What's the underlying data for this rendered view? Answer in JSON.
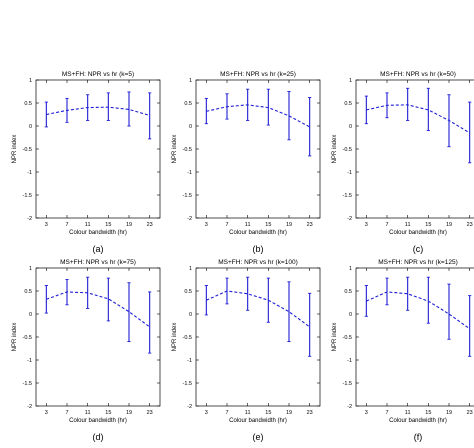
{
  "chart_data": [
    {
      "type": "line",
      "panel_label": "(a)",
      "title": "MS+FH: NPR vs hr (k=5)",
      "xlabel": "Colour bandwidth (hr)",
      "ylabel": "NPR index",
      "x": [
        3,
        7,
        11,
        15,
        19,
        23
      ],
      "xlim": [
        1,
        25
      ],
      "ylim": [
        -2,
        1
      ],
      "yticks": [
        -2,
        -1.5,
        -1,
        -0.5,
        0,
        0.5,
        1
      ],
      "series": [
        {
          "values": [
            0.25,
            0.34,
            0.4,
            0.41,
            0.36,
            0.23
          ],
          "lower": [
            -0.02,
            0.08,
            0.12,
            0.12,
            0.0,
            -0.28
          ],
          "upper": [
            0.52,
            0.6,
            0.68,
            0.72,
            0.74,
            0.72
          ]
        }
      ],
      "color": "#1f1fd6"
    },
    {
      "type": "line",
      "panel_label": "(b)",
      "title": "MS+FH: NPR vs hr (k=25)",
      "xlabel": "Colour bandwidth (hr)",
      "ylabel": "NPR index",
      "x": [
        3,
        7,
        11,
        15,
        19,
        23
      ],
      "xlim": [
        1,
        25
      ],
      "ylim": [
        -2,
        1
      ],
      "yticks": [
        -2,
        -1.5,
        -1,
        -0.5,
        0,
        0.5,
        1
      ],
      "series": [
        {
          "values": [
            0.32,
            0.42,
            0.46,
            0.4,
            0.22,
            -0.02
          ],
          "lower": [
            0.05,
            0.15,
            0.12,
            0.02,
            -0.3,
            -0.65
          ],
          "upper": [
            0.6,
            0.7,
            0.8,
            0.8,
            0.75,
            0.62
          ]
        }
      ],
      "color": "#1f1fd6"
    },
    {
      "type": "line",
      "panel_label": "(c)",
      "title": "MS+FH: NPR vs hr (k=50)",
      "xlabel": "Colour bandwidth (hr)",
      "ylabel": "NPR index",
      "x": [
        3,
        7,
        11,
        15,
        19,
        23
      ],
      "xlim": [
        1,
        25
      ],
      "ylim": [
        -2,
        1
      ],
      "yticks": [
        -2,
        -1.5,
        -1,
        -0.5,
        0,
        0.5,
        1
      ],
      "series": [
        {
          "values": [
            0.35,
            0.45,
            0.46,
            0.35,
            0.12,
            -0.15
          ],
          "lower": [
            0.05,
            0.18,
            0.12,
            -0.1,
            -0.45,
            -0.8
          ],
          "upper": [
            0.65,
            0.72,
            0.82,
            0.82,
            0.68,
            0.52
          ]
        }
      ],
      "color": "#1f1fd6"
    },
    {
      "type": "line",
      "panel_label": "(d)",
      "title": "MS+FH: NPR vs hr (k=75)",
      "xlabel": "Colour bandwidth (hr)",
      "ylabel": "NPR index",
      "x": [
        3,
        7,
        11,
        15,
        19,
        23
      ],
      "xlim": [
        1,
        25
      ],
      "ylim": [
        -2,
        1
      ],
      "yticks": [
        -2,
        -1.5,
        -1,
        -0.5,
        0,
        0.5,
        1
      ],
      "series": [
        {
          "values": [
            0.32,
            0.48,
            0.46,
            0.33,
            0.05,
            -0.28
          ],
          "lower": [
            0.02,
            0.2,
            0.12,
            -0.15,
            -0.6,
            -0.85
          ],
          "upper": [
            0.62,
            0.75,
            0.8,
            0.78,
            0.68,
            0.48
          ]
        }
      ],
      "color": "#1f1fd6"
    },
    {
      "type": "line",
      "panel_label": "(e)",
      "title": "MS+FH: NPR vs hr (k=100)",
      "xlabel": "Colour bandwidth (hr)",
      "ylabel": "NPR index",
      "x": [
        3,
        7,
        11,
        15,
        19,
        23
      ],
      "xlim": [
        1,
        25
      ],
      "ylim": [
        -2,
        1
      ],
      "yticks": [
        -2,
        -1.5,
        -1,
        -0.5,
        0,
        0.5,
        1
      ],
      "series": [
        {
          "values": [
            0.3,
            0.5,
            0.44,
            0.3,
            0.05,
            -0.28
          ],
          "lower": [
            -0.02,
            0.22,
            0.08,
            -0.18,
            -0.6,
            -0.92
          ],
          "upper": [
            0.62,
            0.78,
            0.8,
            0.78,
            0.7,
            0.45
          ]
        }
      ],
      "color": "#1f1fd6"
    },
    {
      "type": "line",
      "panel_label": "(f)",
      "title": "MS+FH: NPR vs hr (k=125)",
      "xlabel": "Colour bandwidth (hr)",
      "ylabel": "NPR index",
      "x": [
        3,
        7,
        11,
        15,
        19,
        23
      ],
      "xlim": [
        1,
        25
      ],
      "ylim": [
        -2,
        1
      ],
      "yticks": [
        -2,
        -1.5,
        -1,
        -0.5,
        0,
        0.5,
        1
      ],
      "series": [
        {
          "values": [
            0.28,
            0.48,
            0.44,
            0.28,
            0.0,
            -0.32
          ],
          "lower": [
            -0.05,
            0.2,
            0.08,
            -0.2,
            -0.55,
            -0.92
          ],
          "upper": [
            0.62,
            0.78,
            0.8,
            0.8,
            0.65,
            0.4
          ]
        }
      ],
      "color": "#1f1fd6"
    }
  ]
}
